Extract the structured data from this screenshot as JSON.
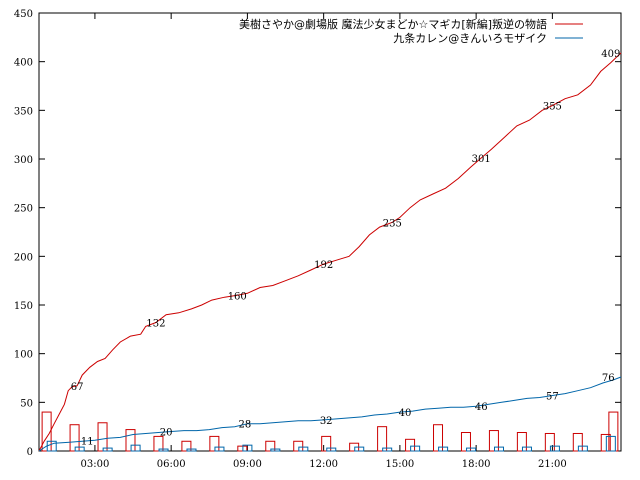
{
  "chart_data": {
    "type": "line",
    "title": "",
    "xlabel": "",
    "ylabel": "",
    "xlim_hours": [
      0.8,
      23.7
    ],
    "ylim": [
      0,
      450
    ],
    "grid": false,
    "legend_position": "top-right",
    "xticks": [
      {
        "hour": 3,
        "label": "03:00"
      },
      {
        "hour": 6,
        "label": "06:00"
      },
      {
        "hour": 9,
        "label": "09:00"
      },
      {
        "hour": 12,
        "label": "12:00"
      },
      {
        "hour": 15,
        "label": "15:00"
      },
      {
        "hour": 18,
        "label": "18:00"
      },
      {
        "hour": 21,
        "label": "21:00"
      }
    ],
    "yticks": [
      0,
      50,
      100,
      150,
      200,
      250,
      300,
      350,
      400,
      450
    ],
    "series": [
      {
        "name": "美樹さやか@劇場版 魔法少女まどか☆マギカ[新編]叛逆の物語",
        "color": "#cc0000",
        "line": [
          [
            0.8,
            0
          ],
          [
            1.0,
            10
          ],
          [
            1.2,
            18
          ],
          [
            1.4,
            28
          ],
          [
            1.6,
            38
          ],
          [
            1.8,
            48
          ],
          [
            1.95,
            62
          ],
          [
            2.1,
            66
          ],
          [
            2.3,
            67
          ],
          [
            2.5,
            78
          ],
          [
            2.8,
            86
          ],
          [
            3.1,
            92
          ],
          [
            3.4,
            95
          ],
          [
            3.7,
            104
          ],
          [
            4.0,
            112
          ],
          [
            4.4,
            118
          ],
          [
            4.8,
            120
          ],
          [
            5.0,
            128
          ],
          [
            5.4,
            132
          ],
          [
            5.8,
            140
          ],
          [
            6.3,
            142
          ],
          [
            6.8,
            146
          ],
          [
            7.2,
            150
          ],
          [
            7.6,
            155
          ],
          [
            8.1,
            158
          ],
          [
            8.6,
            160
          ],
          [
            9.0,
            162
          ],
          [
            9.5,
            168
          ],
          [
            10.0,
            170
          ],
          [
            10.5,
            175
          ],
          [
            11.0,
            180
          ],
          [
            11.5,
            186
          ],
          [
            12.0,
            192
          ],
          [
            12.5,
            196
          ],
          [
            13.0,
            200
          ],
          [
            13.4,
            210
          ],
          [
            13.8,
            222
          ],
          [
            14.2,
            230
          ],
          [
            14.7,
            235
          ],
          [
            15.0,
            240
          ],
          [
            15.4,
            250
          ],
          [
            15.8,
            258
          ],
          [
            16.3,
            264
          ],
          [
            16.8,
            270
          ],
          [
            17.3,
            280
          ],
          [
            17.8,
            292
          ],
          [
            18.2,
            301
          ],
          [
            18.6,
            310
          ],
          [
            19.1,
            322
          ],
          [
            19.6,
            334
          ],
          [
            20.1,
            340
          ],
          [
            20.6,
            350
          ],
          [
            21.0,
            355
          ],
          [
            21.5,
            362
          ],
          [
            22.0,
            366
          ],
          [
            22.5,
            376
          ],
          [
            22.9,
            390
          ],
          [
            23.3,
            399
          ],
          [
            23.7,
            409
          ]
        ],
        "labels": [
          [
            2.3,
            67
          ],
          [
            5.4,
            132
          ],
          [
            8.6,
            160
          ],
          [
            12.0,
            192
          ],
          [
            14.7,
            235
          ],
          [
            18.2,
            301
          ],
          [
            21.0,
            355
          ],
          [
            23.3,
            409
          ]
        ],
        "bars": [
          [
            1.1,
            40
          ],
          [
            2.2,
            27
          ],
          [
            3.3,
            29
          ],
          [
            4.4,
            22
          ],
          [
            5.5,
            15
          ],
          [
            6.6,
            10
          ],
          [
            7.7,
            15
          ],
          [
            8.8,
            5
          ],
          [
            9.9,
            10
          ],
          [
            11.0,
            10
          ],
          [
            12.1,
            15
          ],
          [
            13.2,
            8
          ],
          [
            14.3,
            25
          ],
          [
            15.4,
            12
          ],
          [
            16.5,
            27
          ],
          [
            17.6,
            19
          ],
          [
            18.7,
            21
          ],
          [
            19.8,
            19
          ],
          [
            20.9,
            18
          ],
          [
            22.0,
            18
          ],
          [
            23.1,
            17
          ],
          [
            23.4,
            40
          ]
        ]
      },
      {
        "name": "九条カレン@きんいろモザイク",
        "color": "#0066aa",
        "line": [
          [
            0.8,
            0
          ],
          [
            1.1,
            5
          ],
          [
            1.4,
            8
          ],
          [
            2.0,
            9
          ],
          [
            2.5,
            10
          ],
          [
            3.0,
            11
          ],
          [
            3.5,
            13
          ],
          [
            4.0,
            14
          ],
          [
            4.5,
            17
          ],
          [
            5.0,
            18
          ],
          [
            5.5,
            19
          ],
          [
            6.0,
            20
          ],
          [
            6.5,
            21
          ],
          [
            7.0,
            21
          ],
          [
            7.5,
            22
          ],
          [
            8.0,
            24
          ],
          [
            8.5,
            25
          ],
          [
            9.0,
            28
          ],
          [
            9.5,
            28
          ],
          [
            10.0,
            29
          ],
          [
            10.5,
            30
          ],
          [
            11.0,
            31
          ],
          [
            11.5,
            31
          ],
          [
            12.0,
            32
          ],
          [
            12.5,
            33
          ],
          [
            13.0,
            34
          ],
          [
            13.5,
            35
          ],
          [
            14.0,
            37
          ],
          [
            14.5,
            38
          ],
          [
            15.0,
            40
          ],
          [
            15.5,
            41
          ],
          [
            16.0,
            43
          ],
          [
            16.5,
            44
          ],
          [
            17.0,
            45
          ],
          [
            17.5,
            45
          ],
          [
            18.0,
            46
          ],
          [
            18.5,
            48
          ],
          [
            19.0,
            50
          ],
          [
            19.5,
            52
          ],
          [
            20.0,
            54
          ],
          [
            20.5,
            55
          ],
          [
            21.0,
            57
          ],
          [
            21.5,
            59
          ],
          [
            22.0,
            62
          ],
          [
            22.5,
            65
          ],
          [
            23.0,
            70
          ],
          [
            23.4,
            73
          ],
          [
            23.7,
            76
          ]
        ],
        "labels": [
          [
            2.7,
            11
          ],
          [
            5.8,
            20
          ],
          [
            8.9,
            28
          ],
          [
            12.1,
            32
          ],
          [
            15.2,
            40
          ],
          [
            18.2,
            46
          ],
          [
            21.0,
            57
          ],
          [
            23.2,
            76
          ]
        ],
        "bars": [
          [
            1.3,
            10
          ],
          [
            2.4,
            4
          ],
          [
            3.5,
            3
          ],
          [
            4.6,
            6
          ],
          [
            5.7,
            2
          ],
          [
            6.8,
            2
          ],
          [
            7.9,
            4
          ],
          [
            9.0,
            6
          ],
          [
            10.1,
            2
          ],
          [
            11.2,
            4
          ],
          [
            12.3,
            3
          ],
          [
            13.4,
            4
          ],
          [
            14.5,
            3
          ],
          [
            15.6,
            5
          ],
          [
            16.7,
            4
          ],
          [
            17.8,
            3
          ],
          [
            18.9,
            4
          ],
          [
            20.0,
            4
          ],
          [
            21.1,
            5
          ],
          [
            22.2,
            5
          ],
          [
            23.3,
            15
          ]
        ]
      }
    ]
  }
}
